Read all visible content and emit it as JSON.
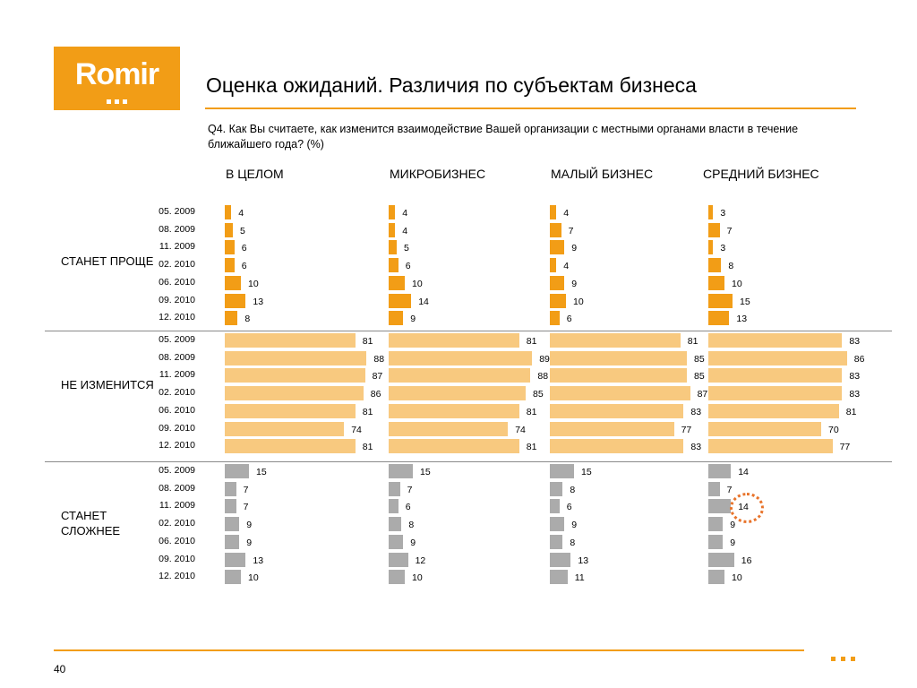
{
  "logo": {
    "text": "Romir"
  },
  "header": {
    "title": "Оценка ожиданий. Различия по субъектам бизнеса",
    "question": "Q4. Как Вы считаете, как изменится взаимодействие Вашей организации с местными органами власти в течение ближайшего года? (%)"
  },
  "footer": {
    "page_number": "40"
  },
  "colors": {
    "accent": "#F29D16",
    "easier": "#F29D16",
    "no_change": "#F8C97F",
    "harder": "#ABABAB",
    "highlight": "#E8732A"
  },
  "chart_data": {
    "type": "bar",
    "orientation": "horizontal",
    "periods": [
      "05. 2009",
      "08. 2009",
      "11. 2009",
      "02. 2010",
      "06. 2010",
      "09. 2010",
      "12. 2010"
    ],
    "columns": [
      "В ЦЕЛОМ",
      "МИКРОБИЗНЕС",
      "МАЛЫЙ БИЗНЕС",
      "СРЕДНИЙ БИЗНЕС"
    ],
    "xlim": [
      0,
      100
    ],
    "groups": [
      {
        "label": "СТАНЕТ ПРОЩЕ",
        "color": "#F29D16",
        "values": [
          [
            4,
            5,
            6,
            6,
            10,
            13,
            8
          ],
          [
            4,
            4,
            5,
            6,
            10,
            14,
            9
          ],
          [
            4,
            7,
            9,
            4,
            9,
            10,
            6
          ],
          [
            3,
            7,
            3,
            8,
            10,
            15,
            13
          ]
        ]
      },
      {
        "label": "НЕ ИЗМЕНИТСЯ",
        "color": "#F8C97F",
        "values": [
          [
            81,
            88,
            87,
            86,
            81,
            74,
            81
          ],
          [
            81,
            89,
            88,
            85,
            81,
            74,
            81
          ],
          [
            81,
            85,
            85,
            87,
            83,
            77,
            83
          ],
          [
            83,
            86,
            83,
            83,
            81,
            70,
            77
          ]
        ]
      },
      {
        "label": "СТАНЕТ СЛОЖНЕЕ",
        "color": "#ABABAB",
        "values": [
          [
            15,
            7,
            7,
            9,
            9,
            13,
            10
          ],
          [
            15,
            7,
            6,
            8,
            9,
            12,
            10
          ],
          [
            15,
            8,
            6,
            9,
            8,
            13,
            11
          ],
          [
            14,
            7,
            14,
            9,
            9,
            16,
            10
          ]
        ]
      }
    ],
    "highlight": {
      "group": "СТАНЕТ СЛОЖНЕЕ",
      "column": "СРЕДНИЙ БИЗНЕС",
      "period": "11. 2009",
      "value": 14
    }
  }
}
